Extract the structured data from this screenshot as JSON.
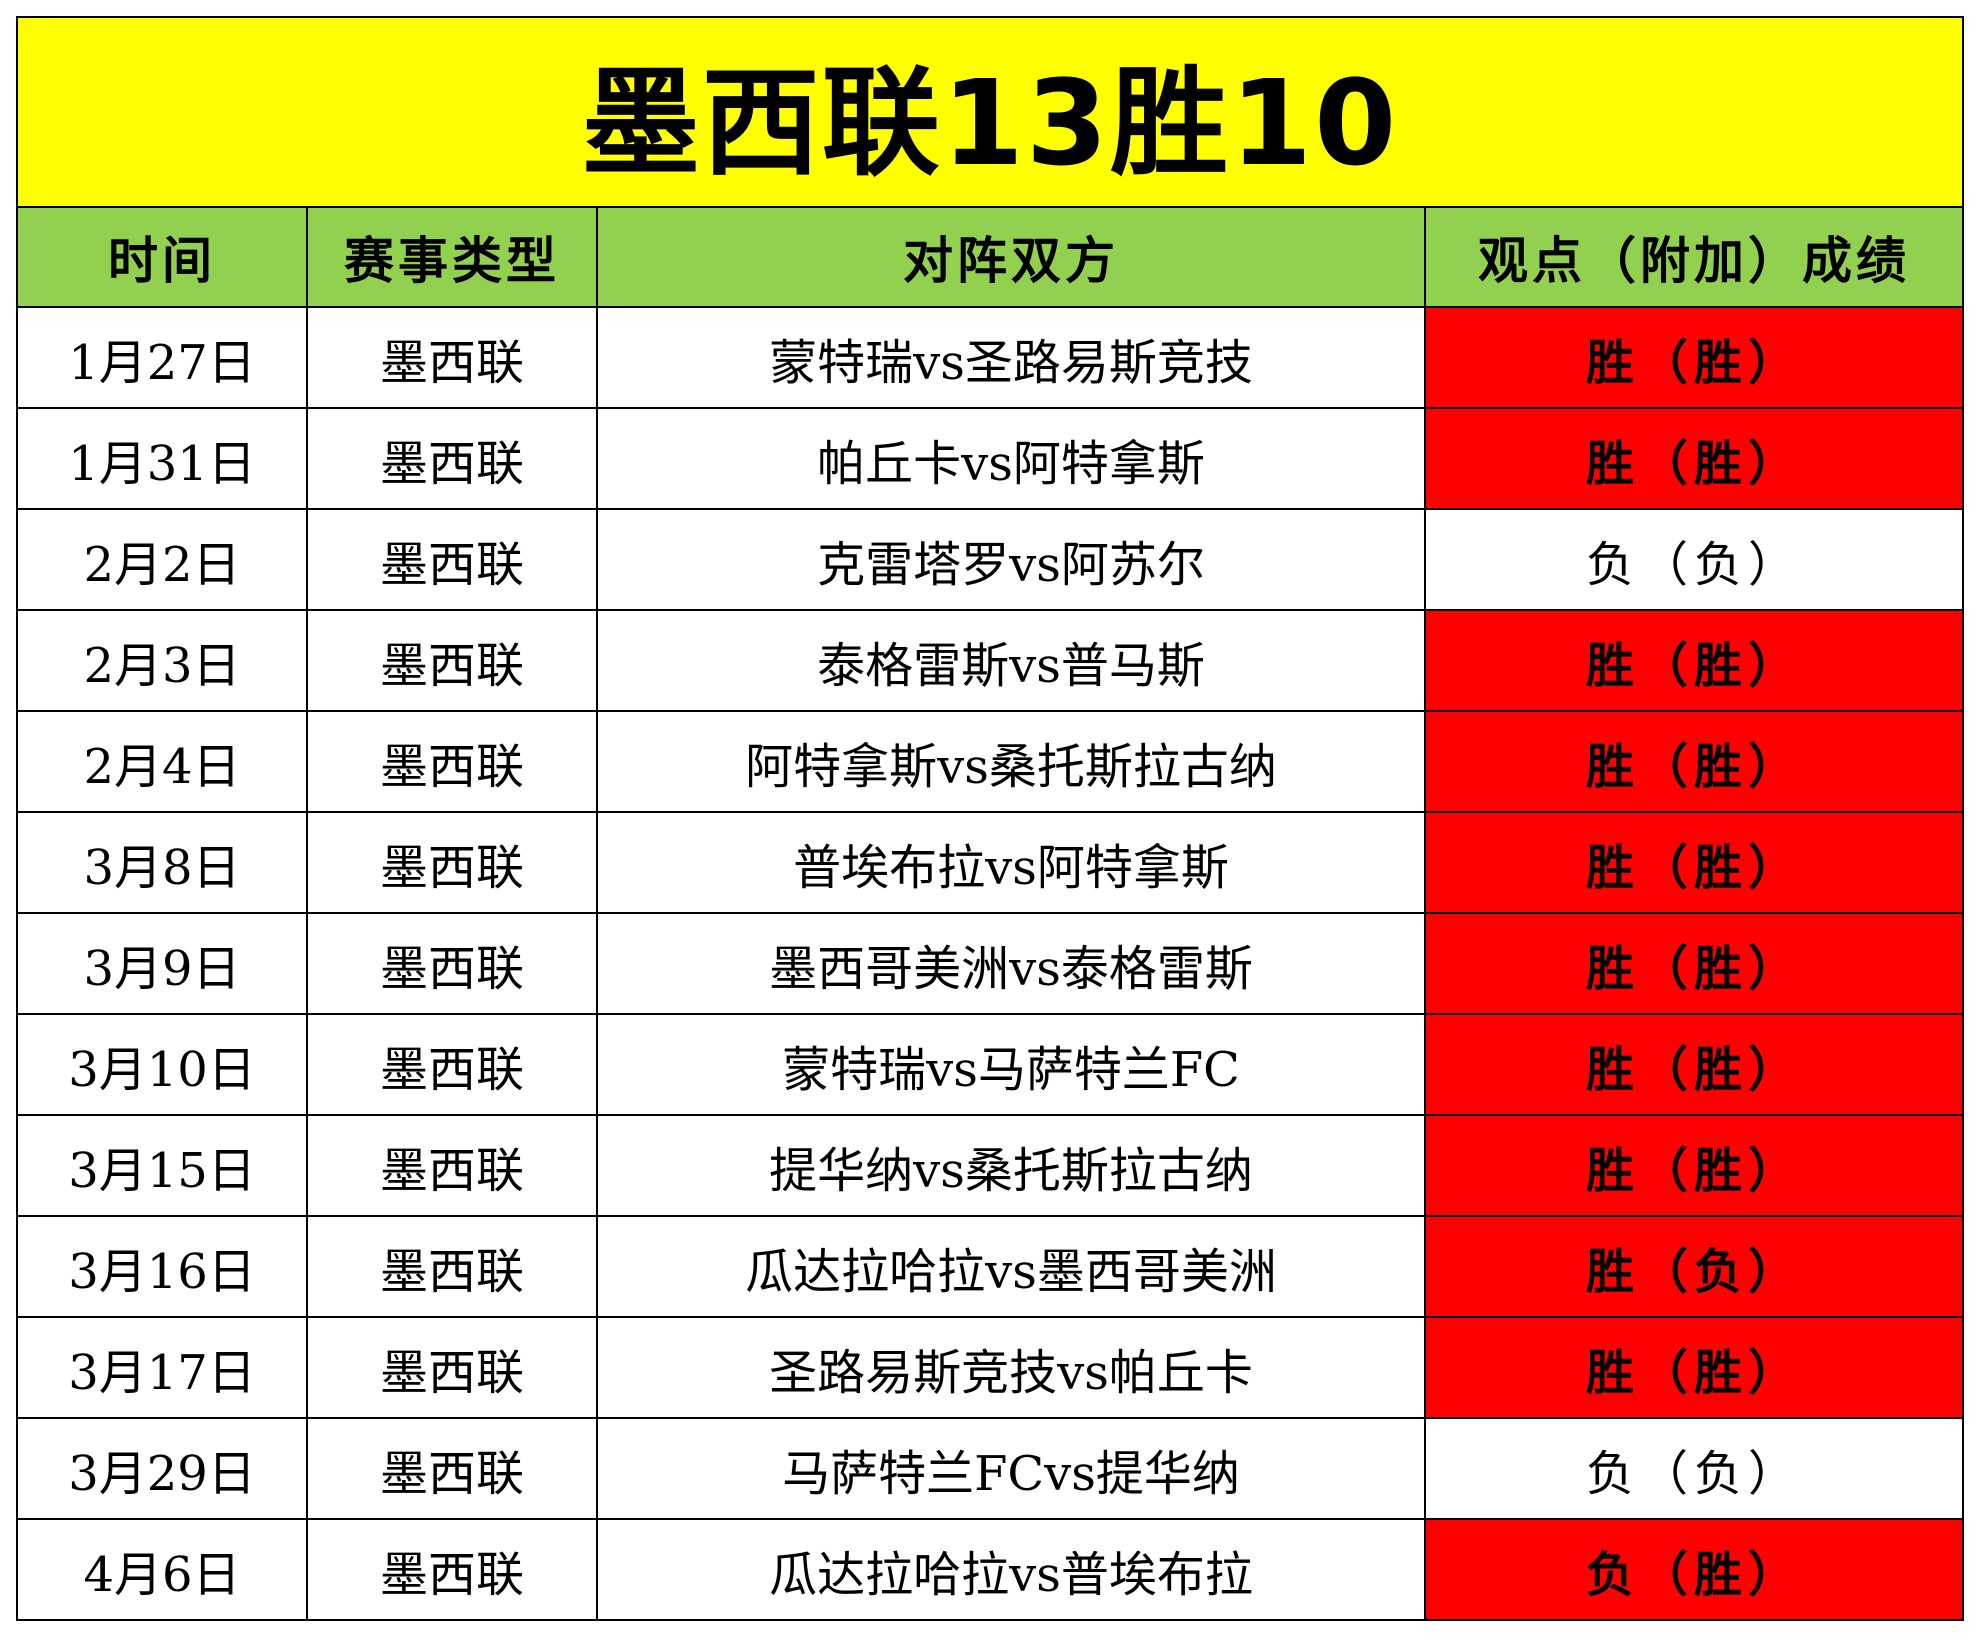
{
  "title": "墨西联13胜10",
  "columns": [
    "时间",
    "赛事类型",
    "对阵双方",
    "观点（附加）成绩"
  ],
  "rows": [
    {
      "date": "1月27日",
      "league": "墨西联",
      "match": "蒙特瑞vs圣路易斯竞技",
      "result": "胜（胜）",
      "highlight": true
    },
    {
      "date": "1月31日",
      "league": "墨西联",
      "match": "帕丘卡vs阿特拿斯",
      "result": "胜（胜）",
      "highlight": true
    },
    {
      "date": "2月2日",
      "league": "墨西联",
      "match": "克雷塔罗vs阿苏尔",
      "result": "负（负）",
      "highlight": false
    },
    {
      "date": "2月3日",
      "league": "墨西联",
      "match": "泰格雷斯vs普马斯",
      "result": "胜（胜）",
      "highlight": true
    },
    {
      "date": "2月4日",
      "league": "墨西联",
      "match": "阿特拿斯vs桑托斯拉古纳",
      "result": "胜（胜）",
      "highlight": true
    },
    {
      "date": "3月8日",
      "league": "墨西联",
      "match": "普埃布拉vs阿特拿斯",
      "result": "胜（胜）",
      "highlight": true
    },
    {
      "date": "3月9日",
      "league": "墨西联",
      "match": "墨西哥美洲vs泰格雷斯",
      "result": "胜（胜）",
      "highlight": true
    },
    {
      "date": "3月10日",
      "league": "墨西联",
      "match": "蒙特瑞vs马萨特兰FC",
      "result": "胜（胜）",
      "highlight": true
    },
    {
      "date": "3月15日",
      "league": "墨西联",
      "match": "提华纳vs桑托斯拉古纳",
      "result": "胜（胜）",
      "highlight": true
    },
    {
      "date": "3月16日",
      "league": "墨西联",
      "match": "瓜达拉哈拉vs墨西哥美洲",
      "result": "胜（负）",
      "highlight": true
    },
    {
      "date": "3月17日",
      "league": "墨西联",
      "match": "圣路易斯竞技vs帕丘卡",
      "result": "胜（胜）",
      "highlight": true
    },
    {
      "date": "3月29日",
      "league": "墨西联",
      "match": "马萨特兰FCvs提华纳",
      "result": "负（负）",
      "highlight": false
    },
    {
      "date": "4月6日",
      "league": "墨西联",
      "match": "瓜达拉哈拉vs普埃布拉",
      "result": "负（胜）",
      "highlight": true
    }
  ],
  "colors": {
    "title_bg": "#ffff00",
    "header_bg": "#92d050",
    "highlight_bg": "#ff0000",
    "border": "#000000"
  }
}
